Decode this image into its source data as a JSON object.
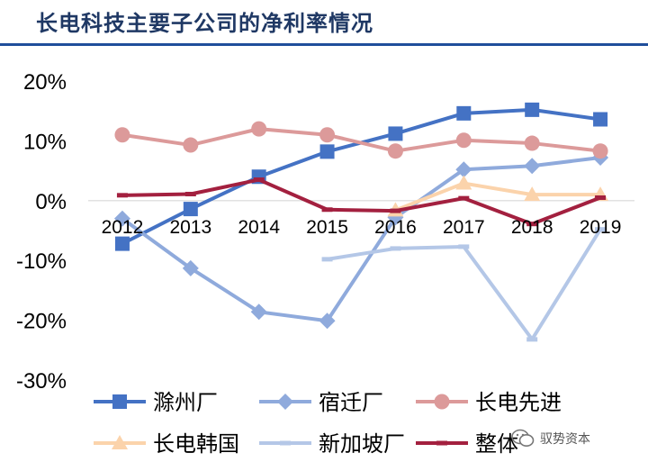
{
  "title": "长电科技主要子公司的净利率情况",
  "watermark": "驭势资本",
  "chart_data": {
    "type": "line",
    "x": [
      "2012",
      "2013",
      "2014",
      "2015",
      "2016",
      "2017",
      "2018",
      "2019"
    ],
    "ylim": [
      -30,
      20
    ],
    "yticks": [
      "20%",
      "10%",
      "0%",
      "-10%",
      "-20%",
      "-30%"
    ],
    "ytick_values": [
      20,
      10,
      0,
      -10,
      -20,
      -30
    ],
    "legend_position": "bottom",
    "grid": false,
    "series": [
      {
        "name": "滁州厂",
        "color": "#4472c4",
        "marker": "square",
        "values": [
          -7.2,
          -1.4,
          4.0,
          8.2,
          11.2,
          14.6,
          15.2,
          13.6
        ]
      },
      {
        "name": "宿迁厂",
        "color": "#8faadc",
        "marker": "diamond",
        "values": [
          -3.0,
          -11.3,
          -18.6,
          -20.1,
          -2.8,
          5.2,
          5.8,
          7.2
        ]
      },
      {
        "name": "长电先进",
        "color": "#dc9a9a",
        "marker": "circle",
        "values": [
          11.0,
          9.3,
          12.0,
          11.0,
          8.3,
          10.1,
          9.6,
          8.3
        ]
      },
      {
        "name": "长电韩国",
        "color": "#fbd3ab",
        "marker": "triangle",
        "values": [
          null,
          null,
          null,
          null,
          -1.6,
          2.9,
          1.0,
          1.0
        ]
      },
      {
        "name": "新加坡厂",
        "color": "#b4c7e7",
        "marker": "dash",
        "values": [
          null,
          null,
          null,
          -9.8,
          -8.0,
          -7.7,
          -23.2,
          -4.8
        ]
      },
      {
        "name": "整体",
        "color": "#a3203f",
        "marker": "dash",
        "values": [
          0.9,
          1.1,
          3.5,
          -1.5,
          -1.7,
          0.4,
          -3.9,
          0.5
        ]
      }
    ]
  }
}
